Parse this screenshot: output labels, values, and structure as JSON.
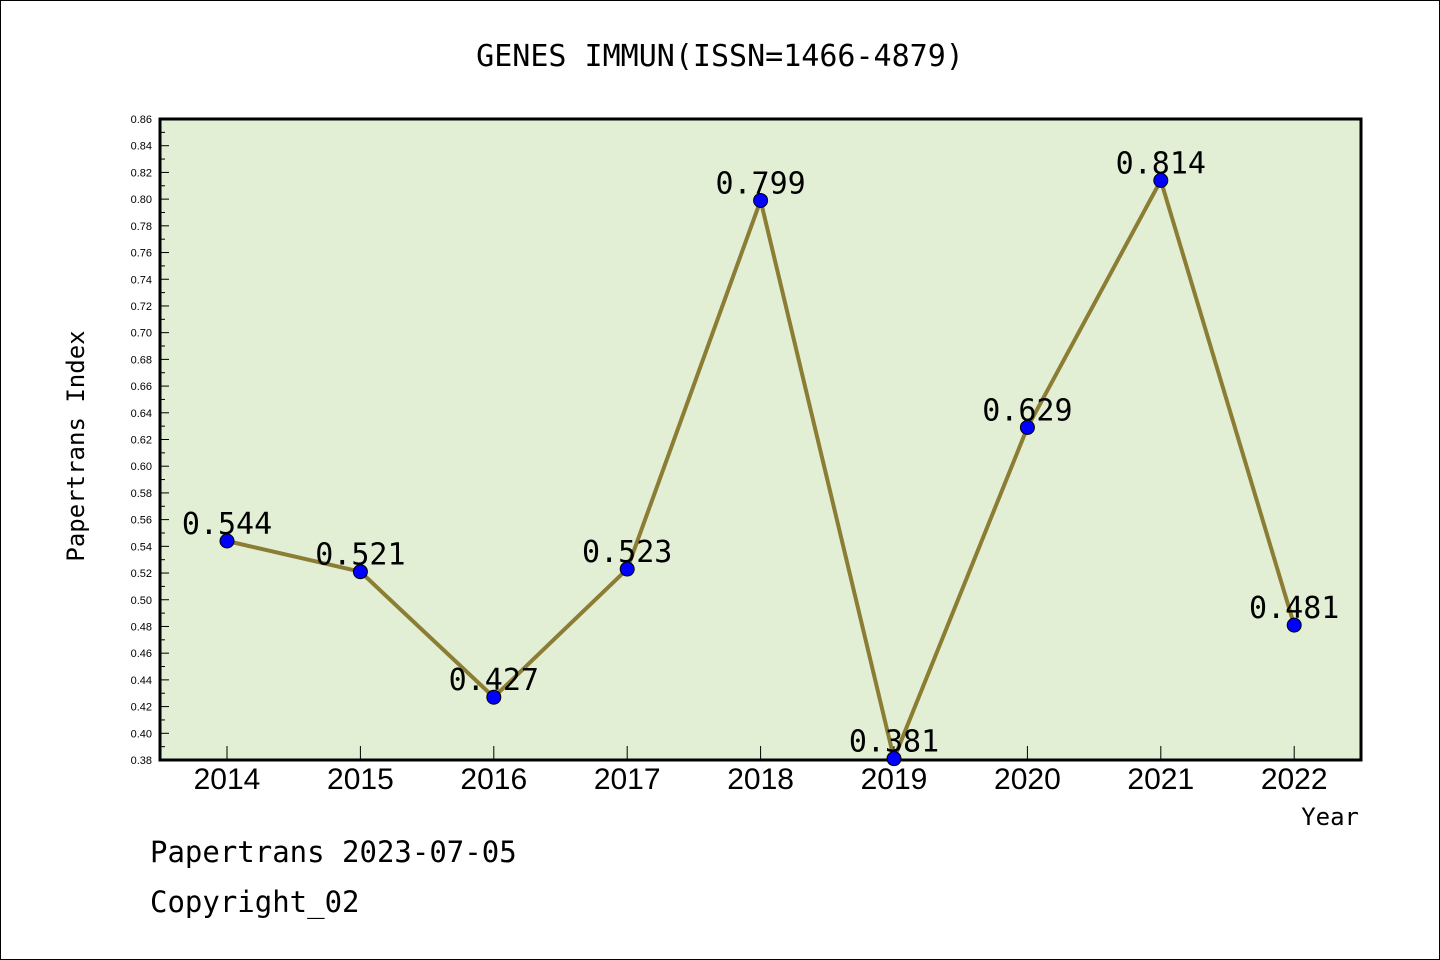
{
  "chart_data": {
    "type": "line",
    "title": "GENES IMMUN(ISSN=1466-4879)",
    "xlabel": "Year",
    "ylabel": "Papertrans Index",
    "categories": [
      "2014",
      "2015",
      "2016",
      "2017",
      "2018",
      "2019",
      "2020",
      "2021",
      "2022"
    ],
    "values": [
      0.544,
      0.521,
      0.427,
      0.523,
      0.799,
      0.381,
      0.629,
      0.814,
      0.481
    ],
    "data_labels": [
      "0.544",
      "0.521",
      "0.427",
      "0.523",
      "0.799",
      "0.381",
      "0.629",
      "0.814",
      "0.481"
    ],
    "ylim": [
      0.38,
      0.86
    ],
    "ytick_step": 0.02,
    "yticks": [
      "0.38",
      "0.40",
      "0.42",
      "0.44",
      "0.46",
      "0.48",
      "0.50",
      "0.52",
      "0.54",
      "0.56",
      "0.58",
      "0.60",
      "0.62",
      "0.64",
      "0.66",
      "0.68",
      "0.70",
      "0.72",
      "0.74",
      "0.76",
      "0.78",
      "0.80",
      "0.82",
      "0.84",
      "0.86"
    ],
    "grid": false,
    "legend": "none",
    "colors": {
      "plot_background": "#e2efd5",
      "line": "#8b7d33",
      "marker": "#0000ff"
    }
  },
  "footer": {
    "line1": "Papertrans 2023-07-05",
    "line2": "Copyright_02"
  }
}
